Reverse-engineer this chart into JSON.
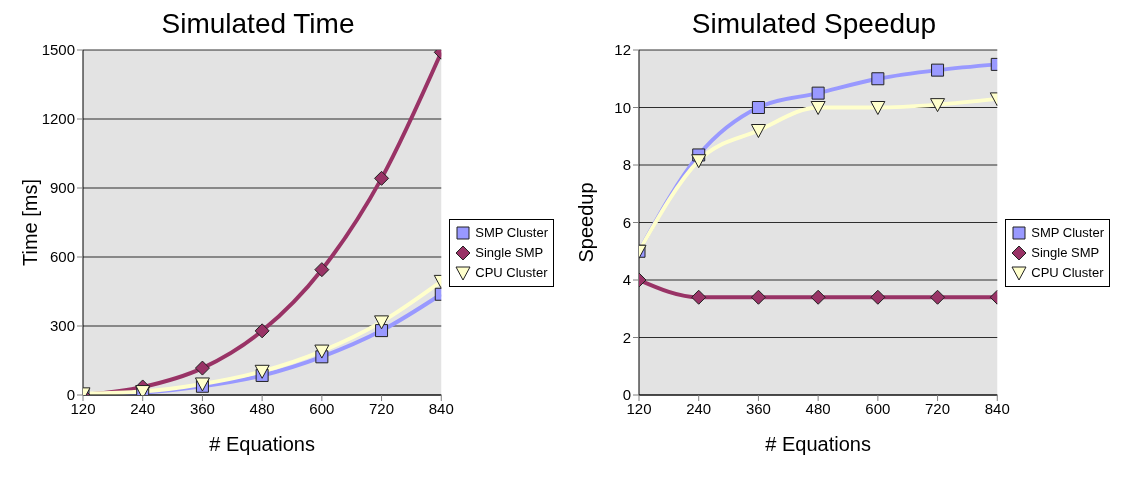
{
  "chart_data": [
    {
      "type": "line",
      "title": "Simulated Time",
      "xlabel": "# Equations",
      "ylabel": "Time [ms]",
      "x": [
        120,
        240,
        360,
        480,
        600,
        720,
        840
      ],
      "xlim": [
        120,
        840
      ],
      "xticks": [
        120,
        240,
        360,
        480,
        600,
        720,
        840
      ],
      "ylim": [
        0,
        1500
      ],
      "yticks": [
        0,
        300,
        600,
        900,
        1200,
        1500
      ],
      "grid": "y",
      "legend": "right",
      "series": [
        {
          "name": "SMP Cluster",
          "color": "#9999ff",
          "marker": "square",
          "values": [
            0,
            10,
            38,
            85,
            166,
            280,
            438
          ]
        },
        {
          "name": "Single SMP",
          "color": "#993366",
          "marker": "diamond",
          "values": [
            0,
            35,
            117,
            279,
            545,
            942,
            1490
          ]
        },
        {
          "name": "CPU Cluster",
          "color": "#ffffcc",
          "marker": "triangle",
          "values": [
            5,
            15,
            48,
            103,
            191,
            318,
            494
          ]
        }
      ]
    },
    {
      "type": "line",
      "title": "Simulated Speedup",
      "xlabel": "# Equations",
      "ylabel": "Speedup",
      "x": [
        120,
        240,
        360,
        480,
        600,
        720,
        840
      ],
      "xlim": [
        120,
        840
      ],
      "xticks": [
        120,
        240,
        360,
        480,
        600,
        720,
        840
      ],
      "ylim": [
        0,
        12
      ],
      "yticks": [
        0,
        2,
        4,
        6,
        8,
        10,
        12
      ],
      "grid": "y",
      "legend": "right",
      "series": [
        {
          "name": "SMP Cluster",
          "color": "#9999ff",
          "marker": "square",
          "values": [
            5,
            8.35,
            10,
            10.5,
            11,
            11.3,
            11.5
          ]
        },
        {
          "name": "Single SMP",
          "color": "#993366",
          "marker": "diamond",
          "values": [
            4,
            3.4,
            3.4,
            3.4,
            3.4,
            3.4,
            3.4
          ]
        },
        {
          "name": "CPU Cluster",
          "color": "#ffffcc",
          "marker": "triangle",
          "values": [
            5,
            8.15,
            9.2,
            10,
            10,
            10.1,
            10.3
          ]
        }
      ]
    }
  ]
}
